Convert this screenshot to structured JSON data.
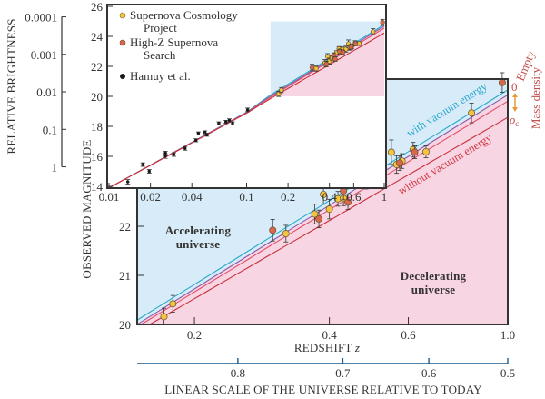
{
  "chart_data": {
    "type": "scatter",
    "main": {
      "xlabel": "REDSHIFT",
      "xlabel_var": "z",
      "ylabel": "OBSERVED MAGNITUDE",
      "xscale": "log",
      "xlim": [
        0.149,
        1.0
      ],
      "ylim": [
        20,
        25
      ],
      "xticks": [
        "0.2",
        "0.4",
        "0.6",
        "1.0"
      ],
      "xtick_values": [
        0.2,
        0.4,
        0.6,
        1.0
      ],
      "yticks": [
        "20",
        "21",
        "22"
      ],
      "ytick_values": [
        20,
        21,
        22
      ],
      "regions": [
        {
          "label_line1": "Accelerating",
          "label_line2": "universe",
          "color": "#d7ecf8",
          "text_color": "#2ba6cf"
        },
        {
          "label_line1": "Decelerating",
          "label_line2": "universe",
          "color": "#f7d5e3",
          "text_color": "#d23a45"
        }
      ],
      "annotations": {
        "with_vacuum": "with vacuum energy",
        "without_vacuum": "without vacuum energy",
        "empty_zero": "0",
        "empty": "Empty",
        "rho_c": "ρ",
        "rho_c_sub": "c",
        "mass_density": "Mass density"
      }
    },
    "inset": {
      "xscale": "log",
      "xlim": [
        0.01,
        1.0
      ],
      "ylim": [
        14,
        26
      ],
      "xticks": [
        "0.01",
        "0.02",
        "0.04",
        "0.1",
        "0.2",
        "0.4",
        "0.6",
        "1"
      ],
      "xtick_values": [
        0.01,
        0.02,
        0.04,
        0.1,
        0.2,
        0.4,
        0.6,
        1.0
      ],
      "yticks": [
        "14",
        "16",
        "18",
        "20",
        "22",
        "24",
        "26"
      ],
      "ytick_values": [
        14,
        16,
        18,
        20,
        22,
        24,
        26
      ]
    },
    "brightness_axis": {
      "label": "RELATIVE BRIGHTNESS",
      "ticks": [
        "0.0001",
        "0.001",
        "0.01",
        "0.1",
        "1"
      ],
      "tick_values": [
        0.0001,
        0.001,
        0.01,
        0.1,
        1
      ]
    },
    "scale_axis": {
      "label": "LINEAR SCALE OF THE UNIVERSE RELATIVE TO TODAY",
      "ticks": [
        "0.8",
        "0.7",
        "0.6",
        "0.5"
      ],
      "tick_values": [
        0.8,
        0.7,
        0.6,
        0.5
      ],
      "color": "#1d5a8c"
    },
    "models": {
      "z": [
        0.01,
        0.1,
        0.149,
        1.0
      ],
      "series": [
        {
          "color": "#2aa9c9",
          "values": [
            13.9,
            18.95,
            20.09,
            24.78
          ]
        },
        {
          "color": "#8a5aa8",
          "values": [
            13.9,
            18.93,
            20.0,
            24.68
          ]
        },
        {
          "color": "#e0506a",
          "values": [
            13.9,
            18.9,
            19.95,
            24.55
          ]
        },
        {
          "color": "#c8303a",
          "values": [
            13.9,
            18.88,
            19.85,
            24.22
          ]
        }
      ]
    },
    "series": [
      {
        "name": "Supernova Cosmology Project",
        "legend_line2": "Project",
        "legend_line1": "Supernova Cosmology",
        "color": "#f2c440",
        "points": [
          [
            0.171,
            20.16,
            0.17
          ],
          [
            0.179,
            20.42,
            0.17
          ],
          [
            0.32,
            21.85,
            0.17
          ],
          [
            0.371,
            22.25,
            0.2
          ],
          [
            0.388,
            22.65,
            0.2
          ],
          [
            0.4,
            22.35,
            0.2
          ],
          [
            0.418,
            22.56,
            0.15
          ],
          [
            0.43,
            22.57,
            0.15
          ],
          [
            0.45,
            22.92,
            0.12
          ],
          [
            0.469,
            23.17,
            0.15
          ],
          [
            0.483,
            22.96,
            0.2
          ],
          [
            0.496,
            23.14,
            0.15
          ],
          [
            0.527,
            23.15,
            0.2
          ],
          [
            0.55,
            23.51,
            0.25
          ],
          [
            0.565,
            23.26,
            0.18
          ],
          [
            0.581,
            23.33,
            0.15
          ],
          [
            0.615,
            23.56,
            0.15
          ],
          [
            0.657,
            23.52,
            0.12
          ],
          [
            0.83,
            24.31,
            0.2
          ]
        ]
      },
      {
        "name": "High-Z Supernova Search",
        "legend_line1": "High-Z Supernova",
        "legend_line2": "Search",
        "color": "#d9684a",
        "points": [
          [
            0.299,
            21.92,
            0.22
          ],
          [
            0.379,
            22.15,
            0.18
          ],
          [
            0.43,
            22.72,
            0.18
          ],
          [
            0.44,
            22.49,
            0.15
          ],
          [
            0.474,
            22.99,
            0.15
          ],
          [
            0.5,
            22.94,
            0.15
          ],
          [
            0.574,
            23.29,
            0.15
          ],
          [
            0.62,
            23.51,
            0.13
          ],
          [
            0.972,
            24.93,
            0.2
          ]
        ]
      },
      {
        "name": "Hamuy et al.",
        "legend_line1": "Hamuy et al.",
        "color": "#1a1a1a",
        "points": [
          [
            0.0137,
            14.3,
            0.15
          ],
          [
            0.0176,
            15.45,
            0.12
          ],
          [
            0.0196,
            15.0,
            0.12
          ],
          [
            0.0257,
            16.02,
            0.15
          ],
          [
            0.0257,
            16.22,
            0.12
          ],
          [
            0.0296,
            16.12,
            0.12
          ],
          [
            0.0357,
            16.53,
            0.12
          ],
          [
            0.0428,
            17.07,
            0.1
          ],
          [
            0.0446,
            17.53,
            0.1
          ],
          [
            0.0498,
            17.6,
            0.1
          ],
          [
            0.0514,
            17.44,
            0.1
          ],
          [
            0.0628,
            18.2,
            0.1
          ],
          [
            0.0707,
            18.3,
            0.1
          ],
          [
            0.0749,
            18.4,
            0.1
          ],
          [
            0.079,
            18.2,
            0.1
          ],
          [
            0.1016,
            19.1,
            0.12
          ]
        ]
      }
    ]
  }
}
